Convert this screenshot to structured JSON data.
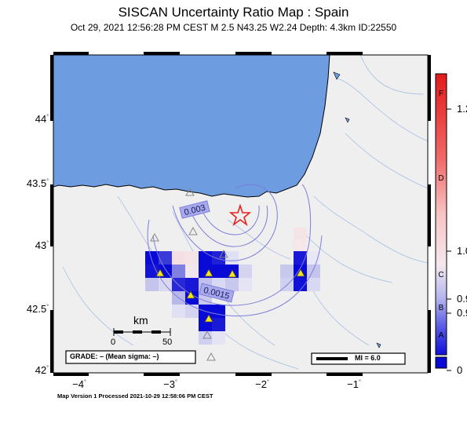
{
  "title": "SISCAN Uncertainty Ratio Map : Spain",
  "subtitle": "Oct 29, 2021 12:56:28 PM CEST   M 2.5   N43.25 W2.24   Depth: 4.3km   ID:22550",
  "footer": "Map Version 1 Processed 2021-10-29 12:58:06 PM CEST",
  "lat_ticks": [
    {
      "label": "44",
      "value": 44.0
    },
    {
      "label": "43.5",
      "value": 43.5
    },
    {
      "label": "43",
      "value": 43.0
    },
    {
      "label": "42.5",
      "value": 42.5
    },
    {
      "label": "42",
      "value": 42.0
    }
  ],
  "lon_ticks": [
    {
      "label": "−4",
      "value": -4
    },
    {
      "label": "−3",
      "value": -3
    },
    {
      "label": "−2",
      "value": -2
    },
    {
      "label": "−1",
      "value": -1
    }
  ],
  "degree_mark": "°",
  "scale_bar": {
    "unit": "km",
    "start": "0",
    "end": "50"
  },
  "grade_box": "GRADE: – (Mean sigma: –)",
  "mi_legend": "MI = 6.0",
  "contour_labels": [
    "0.003",
    "0.0015"
  ],
  "colorbar": {
    "grades": [
      "F",
      "D",
      "C",
      "B",
      "A"
    ],
    "values": [
      "1.2",
      "1.0",
      "0.9",
      "0.9",
      "0"
    ]
  },
  "colors": {
    "sea": "#6d9ce0",
    "land": "#efefef",
    "cell_dark": "#0a0ad6",
    "epicenter": "#e8201e",
    "station": "#f3e61a"
  },
  "epicenter": {
    "lat": 43.25,
    "lon": -2.24,
    "depth_km": 4.3,
    "magnitude": 2.5
  }
}
